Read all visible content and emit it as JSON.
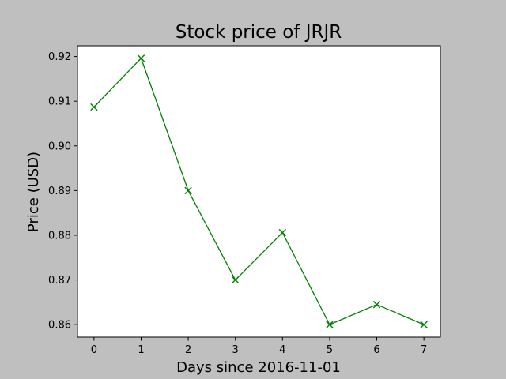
{
  "chart_data": {
    "type": "line",
    "title": "Stock price of JRJR",
    "xlabel": "Days since 2016-11-01",
    "ylabel": "Price (USD)",
    "x": [
      0,
      1,
      2,
      3,
      4,
      5,
      6,
      7
    ],
    "series": [
      {
        "values": [
          0.9087,
          0.9196,
          0.89,
          0.87,
          0.8806,
          0.86,
          0.8645,
          0.86
        ]
      }
    ],
    "xticks": [
      "0",
      "1",
      "2",
      "3",
      "4",
      "5",
      "6",
      "7"
    ],
    "yticks": [
      "0.86",
      "0.87",
      "0.88",
      "0.89",
      "0.90",
      "0.91",
      "0.92"
    ],
    "xlim": [
      -0.35,
      7.35
    ],
    "ylim": [
      0.8572,
      0.9224
    ],
    "grid": false,
    "colors": {
      "figure_bg": "#bfbfbf",
      "axes_bg": "#ffffff",
      "line": "#008000"
    },
    "marker": "x"
  }
}
